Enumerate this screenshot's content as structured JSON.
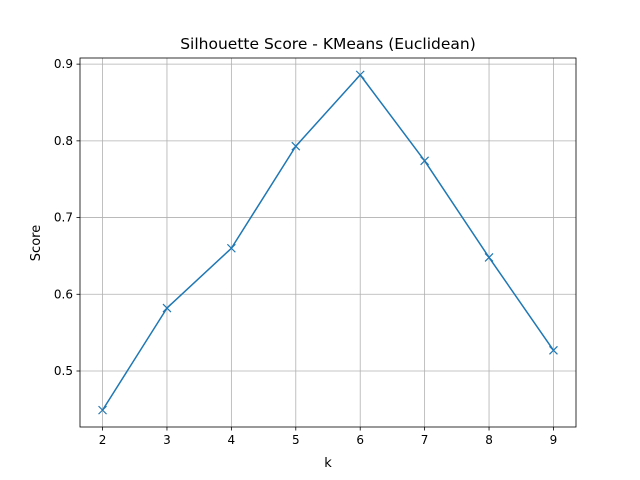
{
  "chart_data": {
    "type": "line",
    "title": "Silhouette Score - KMeans (Euclidean)",
    "xlabel": "k",
    "ylabel": "Score",
    "x": [
      2,
      3,
      4,
      5,
      6,
      7,
      8,
      9
    ],
    "series": [
      {
        "values": [
          0.449,
          0.582,
          0.66,
          0.793,
          0.886,
          0.774,
          0.648,
          0.527
        ],
        "color": "#1f77b4",
        "marker": "x"
      }
    ],
    "xticks": [
      2,
      3,
      4,
      5,
      6,
      7,
      8,
      9
    ],
    "yticks": [
      0.5,
      0.6,
      0.7,
      0.8,
      0.9
    ],
    "ytick_labels": [
      "0.5",
      "0.6",
      "0.7",
      "0.8",
      "0.9"
    ],
    "xlim": [
      1.65,
      9.35
    ],
    "ylim": [
      0.427,
      0.908
    ],
    "grid": true
  }
}
